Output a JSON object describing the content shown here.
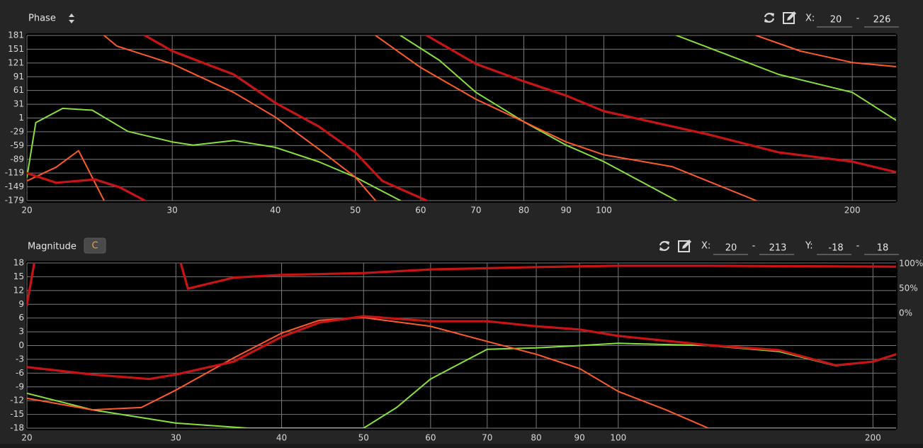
{
  "phase_panel": {
    "title": "Phase",
    "x_label": "X:",
    "x_sep": "-"
  },
  "magnitude_panel": {
    "title": "Magnitude",
    "button": "C",
    "x_label": "X:",
    "x_sep": "-",
    "y_label": "Y:",
    "y_sep": "-",
    "right_labels": [
      "100%",
      "50%",
      "0%"
    ]
  },
  "chart_data": [
    {
      "type": "line",
      "xscale": "log",
      "grid": true,
      "xlim": [
        20,
        226
      ],
      "ylim": [
        -179,
        181
      ],
      "xticks": [
        20,
        30,
        40,
        50,
        60,
        70,
        80,
        90,
        100,
        200
      ],
      "yticks": [
        181,
        151,
        121,
        91,
        61,
        31,
        1,
        -29,
        -59,
        -89,
        -119,
        -149,
        -179
      ],
      "series": [
        {
          "color": "#88e03c",
          "line_style": "normal",
          "x": [
            20,
            20.5,
            22.1,
            24,
            26.5,
            30,
            31.8,
            35.6,
            40,
            45.1,
            50,
            56.7,
            null,
            56.7,
            63.2,
            70,
            80,
            90,
            100,
            122.5,
            null,
            122.5,
            162.9,
            200,
            226
          ],
          "values": [
            -128,
            -9,
            22,
            18,
            -28,
            -51,
            -58,
            -48,
            -63,
            -94,
            -128,
            -179,
            null,
            181,
            127,
            57,
            -7,
            -58,
            -94,
            -179,
            null,
            181,
            96,
            57,
            -4
          ]
        },
        {
          "color": "#ff5a2a",
          "line_style": "normal",
          "x": [
            20,
            21.7,
            23.1,
            24.8,
            null,
            24.8,
            25.7,
            30,
            35.6,
            40,
            45.1,
            50,
            52.9,
            null,
            52.9,
            60,
            70,
            80,
            90,
            100,
            121,
            153,
            null,
            153,
            173,
            200,
            226
          ],
          "values": [
            -136,
            -106,
            -70,
            -179,
            null,
            181,
            158,
            119,
            57,
            3,
            -66,
            -128,
            -179,
            null,
            181,
            111,
            42,
            -7,
            -51,
            -79,
            -105,
            -179,
            null,
            181,
            147,
            122,
            113
          ]
        },
        {
          "color": "#c81414",
          "line_style": "bold",
          "x": [
            20,
            21.7,
            24.2,
            25.9,
            27.8,
            null,
            27.8,
            30,
            35.6,
            40,
            45.1,
            50,
            53.9,
            61,
            null,
            61,
            70,
            80,
            90,
            100,
            134,
            163,
            200,
            226
          ],
          "values": [
            -119,
            -140,
            -133,
            -150,
            -179,
            null,
            181,
            147,
            96,
            34,
            -17,
            -74,
            -136,
            -179,
            null,
            181,
            119,
            81,
            50,
            16,
            -35,
            -74,
            -94,
            -117
          ]
        }
      ]
    },
    {
      "type": "line",
      "xscale": "log",
      "grid": true,
      "xlim": [
        20,
        213
      ],
      "ylim": [
        -18,
        18
      ],
      "xticks": [
        20,
        30,
        40,
        50,
        60,
        70,
        80,
        90,
        100,
        200
      ],
      "yticks": [
        18,
        15,
        12,
        9,
        6,
        3,
        0,
        -3,
        -6,
        -9,
        -12,
        -15,
        -18
      ],
      "series": [
        {
          "color": "#88e03c",
          "line_style": "normal",
          "x": [
            20,
            23.9,
            30,
            36.5,
            50,
            54.7,
            60,
            70,
            80,
            90,
            100,
            127.8,
            155,
            180.7,
            200,
            213
          ],
          "values": [
            -10.4,
            -14,
            -16.9,
            -18,
            -18,
            -13.5,
            -7.3,
            -0.8,
            -0.5,
            0,
            0.5,
            0,
            -1.3,
            -4.4,
            -3.5,
            -1.9
          ]
        },
        {
          "color": "#ff5a2a",
          "line_style": "normal",
          "x": [
            20,
            23.9,
            27.3,
            30,
            35.1,
            40,
            44.3,
            50,
            60,
            70,
            80,
            90,
            100,
            113.8,
            127.8,
            213
          ],
          "values": [
            -11.5,
            -14,
            -13.5,
            -9.7,
            -2.7,
            2.7,
            5.5,
            6.1,
            4.2,
            0.9,
            -1.9,
            -5,
            -10,
            -14,
            -18,
            -18
          ]
        },
        {
          "color": "#c81414",
          "line_style": "bold",
          "x": [
            20,
            23.9,
            27.9,
            30,
            35.1,
            40,
            44.3,
            50,
            60,
            70,
            80,
            90,
            100,
            127.8,
            155,
            180.7,
            200,
            213
          ],
          "values": [
            -4.7,
            -6.3,
            -7.3,
            -6.3,
            -3.5,
            1.9,
            5.0,
            6.4,
            5.3,
            5.3,
            4.2,
            3.5,
            2.1,
            0.1,
            -1.0,
            -4.3,
            -3.5,
            -1.9
          ]
        },
        {
          "color": "#c81414",
          "line_style": "bold",
          "x": [
            20,
            20.4,
            null,
            30.4,
            31,
            35.1,
            40,
            50,
            60,
            80,
            100,
            127.8,
            213
          ],
          "values": [
            8.9,
            18,
            null,
            18,
            12.4,
            14.8,
            15.4,
            15.8,
            16.6,
            17.1,
            17.4,
            17.4,
            17.2
          ]
        }
      ]
    }
  ]
}
